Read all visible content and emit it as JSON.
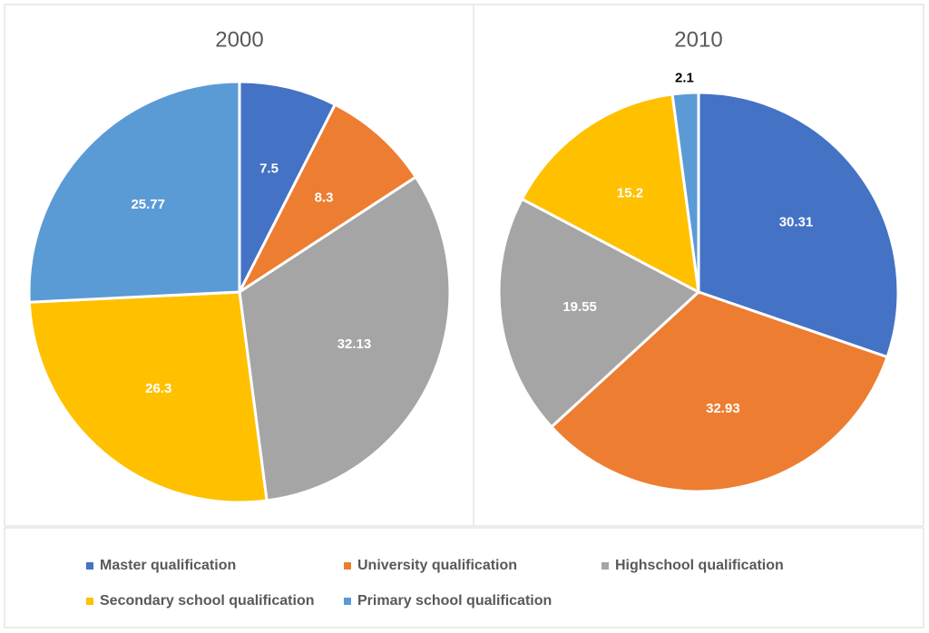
{
  "chart_data": [
    {
      "type": "pie",
      "title": "2000",
      "categories": [
        "Master qualification",
        "University qualification",
        "Highschool qualification",
        "Secondary school qualification",
        "Primary school qualification"
      ],
      "values": [
        7.5,
        8.3,
        32.13,
        26.3,
        25.77
      ],
      "colors": [
        "#4472c4",
        "#ed7d31",
        "#a5a5a5",
        "#ffc000",
        "#5b9bd5"
      ]
    },
    {
      "type": "pie",
      "title": "2010",
      "categories": [
        "Master qualification",
        "University qualification",
        "Highschool qualification",
        "Secondary school qualification",
        "Primary school qualification"
      ],
      "values": [
        30.31,
        32.93,
        19.55,
        15.2,
        2.1
      ],
      "colors": [
        "#4472c4",
        "#ed7d31",
        "#a5a5a5",
        "#ffc000",
        "#5b9bd5"
      ]
    }
  ]
}
